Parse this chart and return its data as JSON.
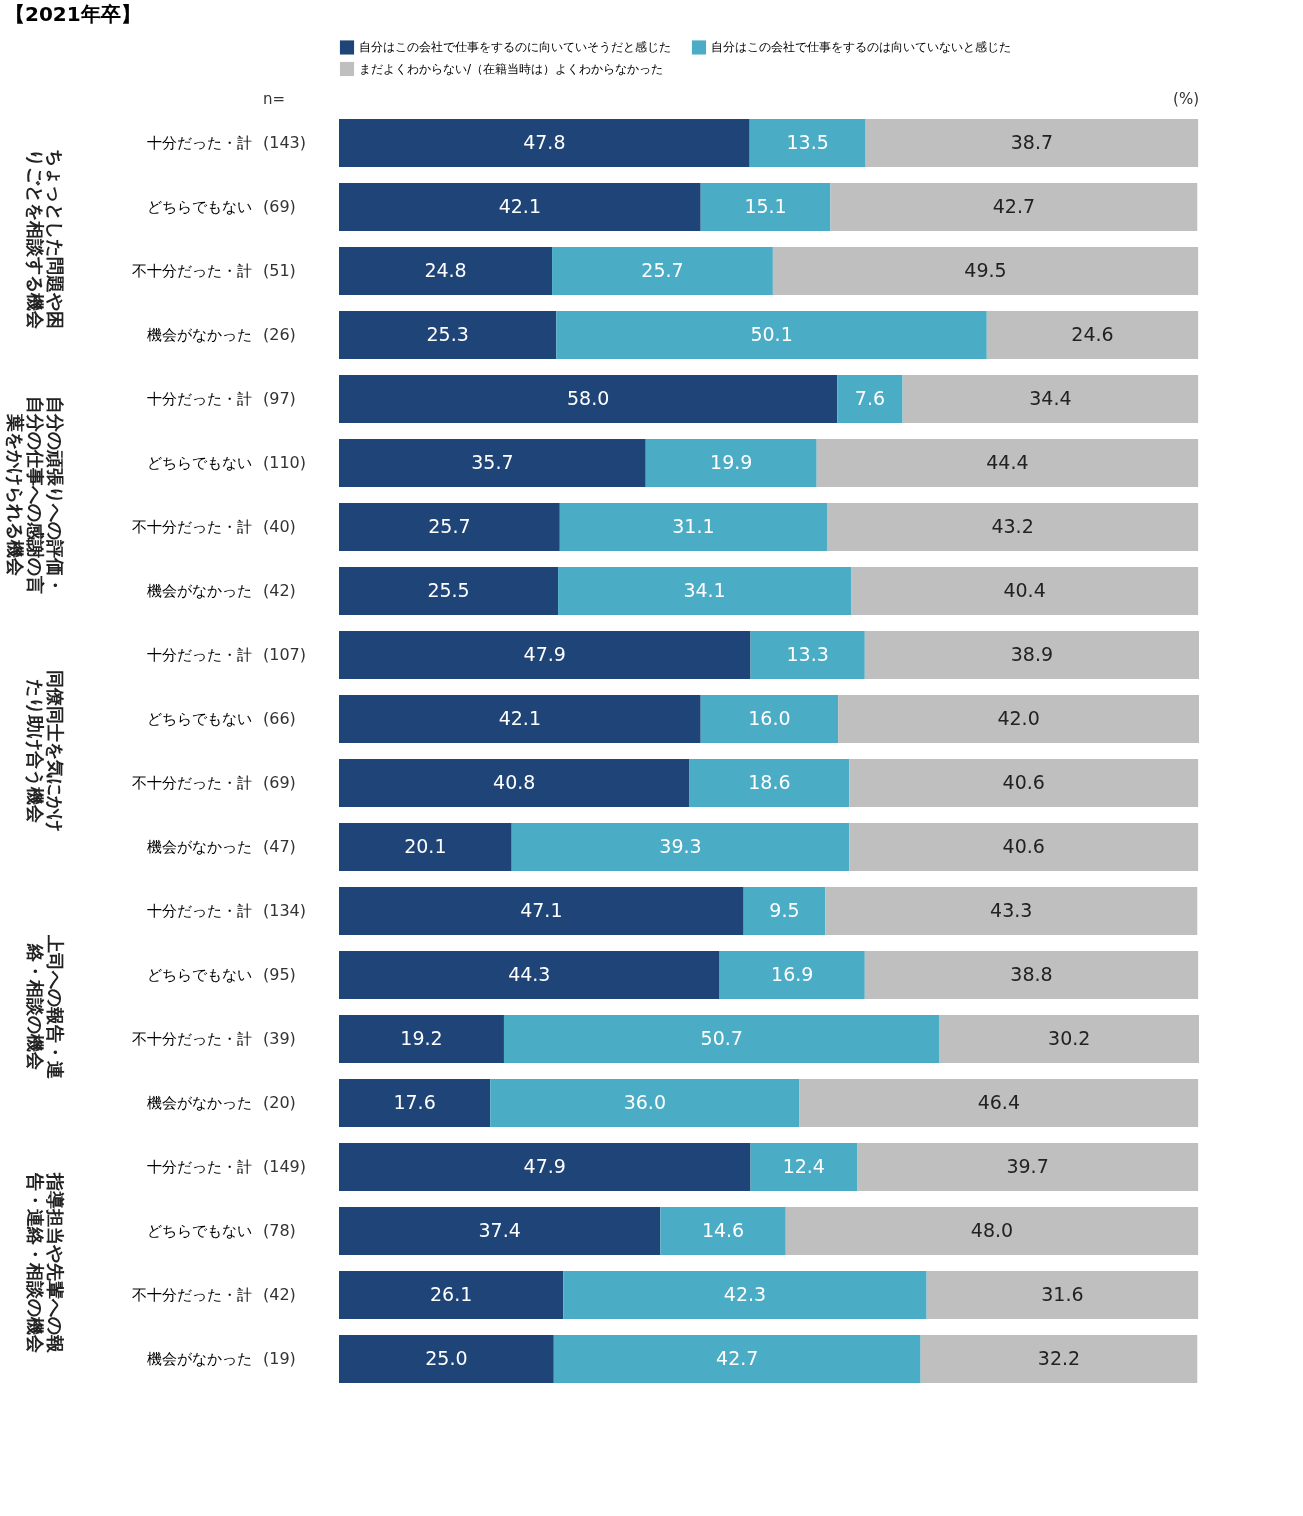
{
  "chart_data": {
    "type": "bar",
    "orientation": "horizontal",
    "stacked": true,
    "legend": "top",
    "tick_labels": "y",
    "title": "【2021年卒】",
    "categories": [
      "十分だった・計",
      "どちらでもない",
      "不十分だった・計",
      "機会がなかった",
      "十分だった・計",
      "どちらでもない",
      "不十分だった・計",
      "機会がなかった",
      "十分だった・計",
      "どちらでもない",
      "不十分だった・計",
      "機会がなかった",
      "十分だった・計",
      "どちらでもない",
      "不十分だった・計",
      "機会がなかった",
      "十分だった・計",
      "どちらでもない",
      "不十分だった・計",
      "機会がなかった"
    ],
    "annotations": [
      "(%)",
      "n=",
      "(143)",
      "(69)",
      "(51)",
      "(26)",
      "(97)",
      "(110)",
      "(40)",
      "(42)",
      "(107)",
      "(66)",
      "(69)",
      "(47)",
      "(134)",
      "(95)",
      "(39)",
      "(20)",
      "(149)",
      "(78)",
      "(42)",
      "(19)",
      "ちょっとした問題や困りごとを相談する機会",
      "自分の頑張りへの評価・自分の仕事への感謝の言葉をかけられる機会",
      "同僚同士を気にかけたり助け合う機会",
      "上司への報告・連絡・相談の機会",
      "指導担当や先輩への報告・連絡・相談の機会"
    ],
    "series": [
      {
        "name": "自分はこの会社で仕事をするのに向いていそうだと感じた",
        "color": "#1f4478",
        "values": [
          47.8,
          42.1,
          24.8,
          25.3,
          58.0,
          35.7,
          25.7,
          25.5,
          47.9,
          42.1,
          40.8,
          20.1,
          47.1,
          44.3,
          19.2,
          17.6,
          47.9,
          37.4,
          26.1,
          25.0
        ],
        "value_labels": [
          "47.8",
          "42.1",
          "24.8",
          "25.3",
          "58.0",
          "35.7",
          "25.7",
          "25.5",
          "47.9",
          "42.1",
          "40.8",
          "20.1",
          "47.1",
          "44.3",
          "19.2",
          "17.6",
          "47.9",
          "37.4",
          "26.1",
          "25.0"
        ]
      },
      {
        "name": "自分はこの会社で仕事をするのは向いていないと感じた",
        "color": "#4bacc6",
        "values": [
          13.5,
          15.1,
          25.7,
          50.1,
          7.6,
          19.9,
          31.1,
          34.1,
          13.3,
          16.0,
          18.6,
          39.3,
          9.5,
          16.9,
          50.7,
          36.0,
          12.4,
          14.6,
          42.3,
          42.7
        ],
        "value_labels": [
          "13.5",
          "15.1",
          "25.7",
          "50.1",
          "7.6",
          "19.9",
          "31.1",
          "34.1",
          "13.3",
          "16.0",
          "18.6",
          "39.3",
          "9.5",
          "16.9",
          "50.7",
          "36.0",
          "12.4",
          "14.6",
          "42.3",
          "42.7"
        ]
      },
      {
        "name": "まだよくわからない/（在籍当時は）よくわからなかった",
        "color": "#bfbfbf",
        "values": [
          38.7,
          42.7,
          49.5,
          24.6,
          34.4,
          44.4,
          43.2,
          40.4,
          38.9,
          42.0,
          40.6,
          40.6,
          43.3,
          38.8,
          30.2,
          46.4,
          39.7,
          48.0,
          31.6,
          32.2
        ],
        "value_labels": [
          "38.7",
          "42.7",
          "49.5",
          "24.6",
          "34.4",
          "44.4",
          "43.2",
          "40.4",
          "38.9",
          "42.0",
          "40.6",
          "40.6",
          "43.3",
          "38.8",
          "30.2",
          "46.4",
          "39.7",
          "48.0",
          "31.6",
          "32.2"
        ]
      }
    ]
  }
}
